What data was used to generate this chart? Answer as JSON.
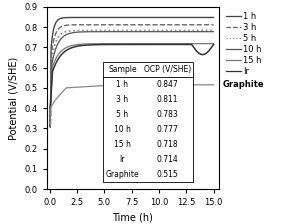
{
  "title": "",
  "xlabel": "Time (h)",
  "ylabel": "Potential (V/SHE)",
  "xlim": [
    -0.3,
    15.5
  ],
  "ylim": [
    0.0,
    0.9
  ],
  "xticks": [
    0.0,
    2.5,
    5.0,
    7.5,
    10.0,
    12.5,
    15.0
  ],
  "yticks": [
    0.0,
    0.1,
    0.2,
    0.3,
    0.4,
    0.5,
    0.6,
    0.7,
    0.8,
    0.9
  ],
  "line_styles": {
    "1h": {
      "color": "#444444",
      "linestyle": "-",
      "linewidth": 1.0
    },
    "3h": {
      "color": "#666666",
      "linestyle": "--",
      "linewidth": 1.0
    },
    "5h": {
      "color": "#888888",
      "linestyle": ":",
      "linewidth": 1.2
    },
    "10h": {
      "color": "#555555",
      "linestyle": "-",
      "linewidth": 0.9
    },
    "15h": {
      "color": "#777777",
      "linestyle": "-",
      "linewidth": 0.9
    },
    "Ir": {
      "color": "#333333",
      "linestyle": "-",
      "linewidth": 1.1
    },
    "Graphite": {
      "color": "#888888",
      "linestyle": "-",
      "linewidth": 0.9
    }
  },
  "legend_labels": [
    "1 h",
    "3 h",
    "5 h",
    "10 h",
    "15 h",
    "Ir"
  ],
  "graphite_label": "Graphite",
  "table_headers": [
    "Sample",
    "OCP (V/SHE)"
  ],
  "table_rows": [
    [
      "1 h",
      "0.847"
    ],
    [
      "3 h",
      "0.811"
    ],
    [
      "5 h",
      "0.783"
    ],
    [
      "10 h",
      "0.777"
    ],
    [
      "15 h",
      "0.718"
    ],
    [
      "Ir",
      "0.714"
    ],
    [
      "Graphite",
      "0.515"
    ]
  ]
}
